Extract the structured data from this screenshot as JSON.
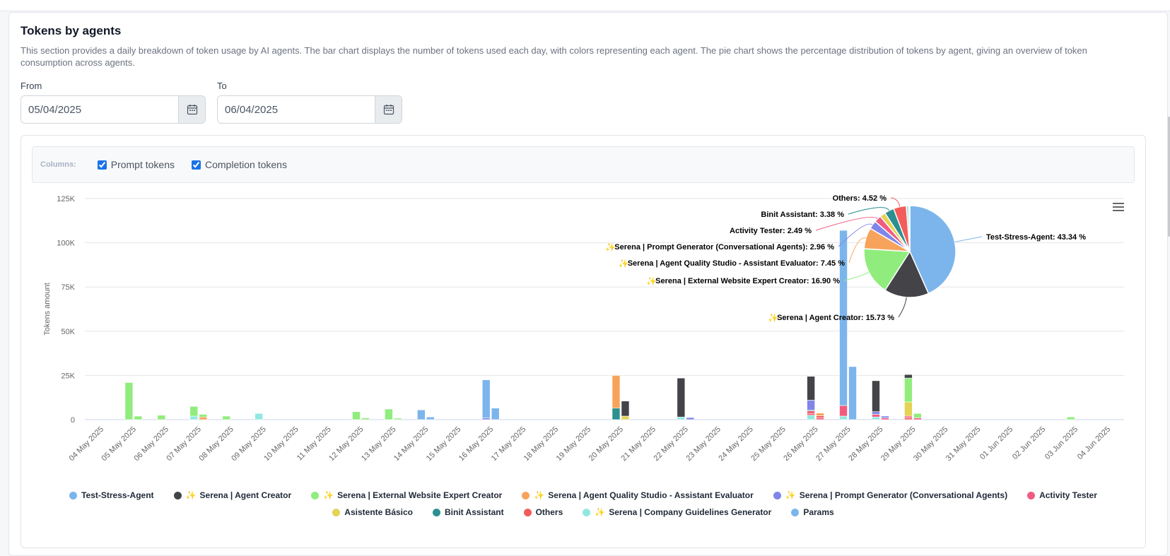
{
  "section": {
    "title": "Tokens by agents",
    "description": "This section provides a daily breakdown of token usage by AI agents. The bar chart displays the number of tokens used each day, with colors representing each agent. The pie chart shows the percentage distribution of tokens by agent, giving an overview of token consumption across agents."
  },
  "filters": {
    "from_label": "From",
    "from_value": "05/04/2025",
    "to_label": "To",
    "to_value": "06/04/2025"
  },
  "columns": {
    "label": "Columns:",
    "options": [
      {
        "label": "Prompt tokens",
        "checked": true
      },
      {
        "label": "Completion tokens",
        "checked": true
      }
    ]
  },
  "icons": {
    "calendar": "calendar-icon",
    "menu": "hamburger-menu-icon",
    "sparkle": "sparkle-icon"
  },
  "chart_data": [
    {
      "type": "bar",
      "stacked": true,
      "ylabel": "Tokens amount",
      "ylim": [
        0,
        125000
      ],
      "yticks": [
        "0",
        "25K",
        "50K",
        "75K",
        "100K",
        "125K"
      ],
      "grid": true,
      "categories": [
        "04 May 2025",
        "05 May 2025",
        "06 May 2025",
        "07 May 2025",
        "08 May 2025",
        "09 May 2025",
        "10 May 2025",
        "11 May 2025",
        "12 May 2025",
        "13 May 2025",
        "14 May 2025",
        "15 May 2025",
        "16 May 2025",
        "17 May 2025",
        "18 May 2025",
        "19 May 2025",
        "20 May 2025",
        "21 May 2025",
        "22 May 2025",
        "23 May 2025",
        "24 May 2025",
        "25 May 2025",
        "26 May 2025",
        "27 May 2025",
        "28 May 2025",
        "29 May 2025",
        "30 May 2025",
        "31 May 2025",
        "01 Jun 2025",
        "02 Jun 2025",
        "03 Jun 2025",
        "04 Jun 2025"
      ],
      "series_colors": {
        "Test-Stress-Agent": "#7cb5ec",
        "Serena | Agent Creator": "#434348",
        "Serena | External Website Expert Creator": "#90ed7d",
        "Serena | Agent Quality Studio - Assistant Evaluator": "#f7a35c",
        "Serena | Prompt Generator (Conversational Agents)": "#8085e9",
        "Activity Tester": "#f15c80",
        "Asistente Básico": "#e4d354",
        "Binit Assistant": "#2b908f",
        "Others": "#f45b5b",
        "Serena | Company Guidelines Generator": "#91e8e1",
        "Params": "#7cb5ec"
      },
      "bars": [
        {
          "category": "05 May 2025",
          "column": "prompt",
          "segments": [
            {
              "series": "Serena | External Website Expert Creator",
              "value": 21000
            }
          ]
        },
        {
          "category": "05 May 2025",
          "column": "completion",
          "segments": [
            {
              "series": "Serena | External Website Expert Creator",
              "value": 2000
            }
          ]
        },
        {
          "category": "06 May 2025",
          "column": "prompt",
          "segments": [
            {
              "series": "Serena | External Website Expert Creator",
              "value": 2500
            }
          ]
        },
        {
          "category": "07 May 2025",
          "column": "prompt",
          "segments": [
            {
              "series": "Serena | Company Guidelines Generator",
              "value": 2000
            },
            {
              "series": "Serena | External Website Expert Creator",
              "value": 5500
            }
          ]
        },
        {
          "category": "07 May 2025",
          "column": "completion",
          "segments": [
            {
              "series": "Serena | Agent Quality Studio - Assistant Evaluator",
              "value": 1500
            },
            {
              "series": "Serena | External Website Expert Creator",
              "value": 1500
            }
          ]
        },
        {
          "category": "08 May 2025",
          "column": "prompt",
          "segments": [
            {
              "series": "Serena | External Website Expert Creator",
              "value": 2000
            }
          ]
        },
        {
          "category": "09 May 2025",
          "column": "prompt",
          "segments": [
            {
              "series": "Serena | Company Guidelines Generator",
              "value": 3500
            }
          ]
        },
        {
          "category": "12 May 2025",
          "column": "prompt",
          "segments": [
            {
              "series": "Serena | External Website Expert Creator",
              "value": 4500
            }
          ]
        },
        {
          "category": "12 May 2025",
          "column": "completion",
          "segments": [
            {
              "series": "Serena | External Website Expert Creator",
              "value": 1000
            }
          ]
        },
        {
          "category": "13 May 2025",
          "column": "prompt",
          "segments": [
            {
              "series": "Serena | External Website Expert Creator",
              "value": 6000
            }
          ]
        },
        {
          "category": "13 May 2025",
          "column": "completion",
          "segments": [
            {
              "series": "Serena | External Website Expert Creator",
              "value": 800
            }
          ]
        },
        {
          "category": "14 May 2025",
          "column": "prompt",
          "segments": [
            {
              "series": "Test-Stress-Agent",
              "value": 5500
            }
          ]
        },
        {
          "category": "14 May 2025",
          "column": "completion",
          "segments": [
            {
              "series": "Test-Stress-Agent",
              "value": 1500
            }
          ]
        },
        {
          "category": "16 May 2025",
          "column": "prompt",
          "segments": [
            {
              "series": "Serena | Prompt Generator (Conversational Agents)",
              "value": 1000
            },
            {
              "series": "Test-Stress-Agent",
              "value": 21500
            }
          ]
        },
        {
          "category": "16 May 2025",
          "column": "completion",
          "segments": [
            {
              "series": "Test-Stress-Agent",
              "value": 6500
            }
          ]
        },
        {
          "category": "20 May 2025",
          "column": "prompt",
          "segments": [
            {
              "series": "Binit Assistant",
              "value": 6500
            },
            {
              "series": "Serena | Agent Quality Studio - Assistant Evaluator",
              "value": 18500
            }
          ]
        },
        {
          "category": "20 May 2025",
          "column": "completion",
          "segments": [
            {
              "series": "Asistente Básico",
              "value": 2000
            },
            {
              "series": "Serena | Agent Creator",
              "value": 8500
            }
          ]
        },
        {
          "category": "22 May 2025",
          "column": "prompt",
          "segments": [
            {
              "series": "Serena | Company Guidelines Generator",
              "value": 1500
            },
            {
              "series": "Serena | Agent Creator",
              "value": 22000
            }
          ]
        },
        {
          "category": "22 May 2025",
          "column": "completion",
          "segments": [
            {
              "series": "Serena | Prompt Generator (Conversational Agents)",
              "value": 1200
            }
          ]
        },
        {
          "category": "26 May 2025",
          "column": "prompt",
          "segments": [
            {
              "series": "Serena | Company Guidelines Generator",
              "value": 2500
            },
            {
              "series": "Others",
              "value": 1000
            },
            {
              "series": "Activity Tester",
              "value": 1500
            },
            {
              "series": "Binit Assistant",
              "value": 500
            },
            {
              "series": "Serena | Prompt Generator (Conversational Agents)",
              "value": 5500
            },
            {
              "series": "Serena | Agent Creator",
              "value": 13500
            }
          ]
        },
        {
          "category": "26 May 2025",
          "column": "completion",
          "segments": [
            {
              "series": "Activity Tester",
              "value": 1000
            },
            {
              "series": "Others",
              "value": 1200
            },
            {
              "series": "Serena | Agent Quality Studio - Assistant Evaluator",
              "value": 1500
            }
          ]
        },
        {
          "category": "27 May 2025",
          "column": "prompt",
          "segments": [
            {
              "series": "Serena | Company Guidelines Generator",
              "value": 2000
            },
            {
              "series": "Activity Tester",
              "value": 6000
            },
            {
              "series": "Test-Stress-Agent",
              "value": 99000
            }
          ]
        },
        {
          "category": "27 May 2025",
          "column": "completion",
          "segments": [
            {
              "series": "Test-Stress-Agent",
              "value": 30000
            }
          ]
        },
        {
          "category": "28 May 2025",
          "column": "prompt",
          "segments": [
            {
              "series": "Serena | Company Guidelines Generator",
              "value": 1500
            },
            {
              "series": "Activity Tester",
              "value": 1500
            },
            {
              "series": "Serena | Prompt Generator (Conversational Agents)",
              "value": 1500
            },
            {
              "series": "Serena | Agent Creator",
              "value": 17500
            }
          ]
        },
        {
          "category": "28 May 2025",
          "column": "completion",
          "segments": [
            {
              "series": "Activity Tester",
              "value": 1000
            },
            {
              "series": "Serena | Prompt Generator (Conversational Agents)",
              "value": 1000
            }
          ]
        },
        {
          "category": "29 May 2025",
          "column": "prompt",
          "segments": [
            {
              "series": "Others",
              "value": 1000
            },
            {
              "series": "Activity Tester",
              "value": 1000
            },
            {
              "series": "Asistente Básico",
              "value": 8000
            },
            {
              "series": "Serena | External Website Expert Creator",
              "value": 13500
            },
            {
              "series": "Serena | Agent Creator",
              "value": 2000
            }
          ]
        },
        {
          "category": "29 May 2025",
          "column": "completion",
          "segments": [
            {
              "series": "Activity Tester",
              "value": 1000
            },
            {
              "series": "Serena | External Website Expert Creator",
              "value": 2500
            }
          ]
        },
        {
          "category": "03 Jun 2025",
          "column": "prompt",
          "segments": [
            {
              "series": "Serena | External Website Expert Creator",
              "value": 1500
            }
          ]
        }
      ]
    },
    {
      "type": "pie",
      "slices": [
        {
          "label": "Test-Stress-Agent: 43.34 %",
          "value": 43.34,
          "color": "#7cb5ec",
          "sparkle": false
        },
        {
          "label": "Serena | Agent Creator: 15.73 %",
          "value": 15.73,
          "color": "#434348",
          "sparkle": true
        },
        {
          "label": "Serena | External Website Expert Creator: 16.90 %",
          "value": 16.9,
          "color": "#90ed7d",
          "sparkle": true
        },
        {
          "label": "Serena | Agent Quality Studio - Assistant Evaluator: 7.45 %",
          "value": 7.45,
          "color": "#f7a35c",
          "sparkle": true
        },
        {
          "label": "Serena | Prompt Generator (Conversational Agents): 2.96 %",
          "value": 2.96,
          "color": "#8085e9",
          "sparkle": true
        },
        {
          "label": "Activity Tester: 2.49 %",
          "value": 2.49,
          "color": "#f15c80",
          "sparkle": false
        },
        {
          "label": "Asistente Básico",
          "value": 2.0,
          "color": "#e4d354",
          "sparkle": false,
          "hidden_label": true
        },
        {
          "label": "Binit Assistant: 3.38 %",
          "value": 3.38,
          "color": "#2b908f",
          "sparkle": false
        },
        {
          "label": "Others: 4.52 %",
          "value": 4.52,
          "color": "#f45b5b",
          "sparkle": false
        },
        {
          "label": "Serena | Company Guidelines Generator",
          "value": 0.9,
          "color": "#91e8e1",
          "sparkle": true,
          "hidden_label": true
        },
        {
          "label": "Params",
          "value": 0.33,
          "color": "#7cb5ec",
          "sparkle": false,
          "hidden_label": true
        }
      ]
    }
  ],
  "legend": [
    {
      "name": "Test-Stress-Agent",
      "color": "#7cb5ec",
      "sparkle": false
    },
    {
      "name": "Serena | Agent Creator",
      "color": "#434348",
      "sparkle": true
    },
    {
      "name": "Serena | External Website Expert Creator",
      "color": "#90ed7d",
      "sparkle": true
    },
    {
      "name": "Serena | Agent Quality Studio - Assistant Evaluator",
      "color": "#f7a35c",
      "sparkle": true
    },
    {
      "name": "Serena | Prompt Generator (Conversational Agents)",
      "color": "#8085e9",
      "sparkle": true
    },
    {
      "name": "Activity Tester",
      "color": "#f15c80",
      "sparkle": false
    },
    {
      "name": "Asistente Básico",
      "color": "#e4d354",
      "sparkle": false
    },
    {
      "name": "Binit Assistant",
      "color": "#2b908f",
      "sparkle": false
    },
    {
      "name": "Others",
      "color": "#f45b5b",
      "sparkle": false
    },
    {
      "name": "Serena | Company Guidelines Generator",
      "color": "#91e8e1",
      "sparkle": true
    },
    {
      "name": "Params",
      "color": "#7cb5ec",
      "sparkle": false
    }
  ]
}
